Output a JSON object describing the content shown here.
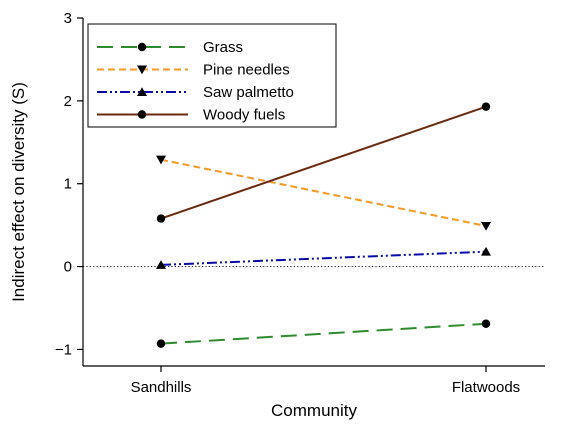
{
  "chart_data": {
    "type": "line",
    "title": "",
    "xlabel": "Community",
    "ylabel": "Indirect effect on diversity (S)",
    "categories": [
      "Sandhills",
      "Flatwoods"
    ],
    "ylim": [
      -1.2,
      3
    ],
    "yticks": [
      -1,
      0,
      1,
      2,
      3
    ],
    "ytick_labels": [
      "−1",
      "0",
      "1",
      "2",
      "3"
    ],
    "reference_line": {
      "y": 0,
      "style": "dotted"
    },
    "legend_position": "top-left",
    "series": [
      {
        "name": "Grass",
        "values": [
          -0.93,
          -0.69
        ],
        "color": "#2e8b2e",
        "dash": "long-dash",
        "marker": "circle"
      },
      {
        "name": "Pine needles",
        "values": [
          1.29,
          0.49
        ],
        "color": "#f59a23",
        "dash": "dashed",
        "marker": "triangle-down"
      },
      {
        "name": "Saw palmetto",
        "values": [
          0.02,
          0.18
        ],
        "color": "#0a0aa8",
        "dash": "dash-dot-dot",
        "marker": "triangle-up"
      },
      {
        "name": "Woody fuels",
        "values": [
          0.58,
          1.93
        ],
        "color": "#6b2a0f",
        "dash": "solid",
        "marker": "circle"
      }
    ]
  }
}
